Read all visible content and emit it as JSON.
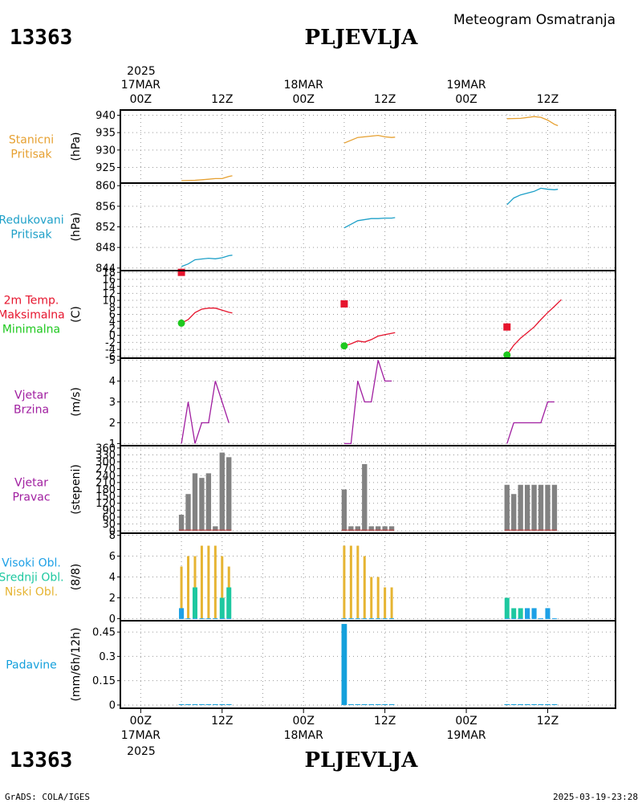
{
  "header": {
    "station_id": "13363",
    "station_name": "PLJEVLJA",
    "chart_title": "Meteogram Osmatranja"
  },
  "footer": {
    "station_id": "13363",
    "station_name": "PLJEVLJA",
    "credit": "GrADS: COLA/IGES",
    "timestamp": "2025-03-19-23:28"
  },
  "colors": {
    "pressure": "#e6a030",
    "reduced_pressure": "#1ea0c8",
    "tmax": "#e6142d",
    "tmin": "#1ec81e",
    "wind": "#a01ea0",
    "wind_dir_bar": "#828282",
    "cloud_low": "#e6b432",
    "cloud_mid": "#1ec8a0",
    "cloud_high": "#1ea0e6",
    "precip": "#14a0dc"
  },
  "time_axis": {
    "top_year": "2025",
    "bottom_year": "2025",
    "days": [
      {
        "label": "17MAR",
        "hour": 0
      },
      {
        "label": "18MAR",
        "hour": 24
      },
      {
        "label": "19MAR",
        "hour": 48
      }
    ],
    "ticks": [
      {
        "hour": 0,
        "label": "00Z"
      },
      {
        "hour": 12,
        "label": "12Z"
      },
      {
        "hour": 24,
        "label": "00Z"
      },
      {
        "hour": 36,
        "label": "12Z"
      },
      {
        "hour": 48,
        "label": "00Z"
      },
      {
        "hour": 60,
        "label": "12Z"
      }
    ],
    "range_hours": [
      -3,
      70
    ]
  },
  "chart_data": [
    {
      "type": "line",
      "label_lines": [
        "Stanicni",
        "Pritisak"
      ],
      "ylabel": "(hPa)",
      "ylim": [
        920.5,
        941.5
      ],
      "yticks": [
        925,
        930,
        935,
        940
      ],
      "series": [
        {
          "segments": [
            [
              [
                6,
                921.2
              ],
              [
                8,
                921.3
              ],
              [
                10,
                921.6
              ],
              [
                11,
                921.8
              ],
              [
                12,
                921.8
              ],
              [
                13,
                922.4
              ],
              [
                13.5,
                922.6
              ]
            ],
            [
              [
                30,
                932.0
              ],
              [
                31,
                932.8
              ],
              [
                32,
                933.6
              ],
              [
                34,
                934.0
              ],
              [
                35,
                934.2
              ],
              [
                36,
                933.8
              ],
              [
                37,
                933.6
              ],
              [
                37.5,
                933.7
              ]
            ],
            [
              [
                54,
                939.0
              ],
              [
                56,
                939.1
              ],
              [
                58,
                939.6
              ],
              [
                59,
                939.4
              ],
              [
                60,
                938.6
              ],
              [
                61,
                937.4
              ],
              [
                61.5,
                937.0
              ]
            ]
          ]
        }
      ]
    },
    {
      "type": "line",
      "label_lines": [
        "Redukovani",
        "Pritisak"
      ],
      "ylabel": "(hPa)",
      "ylim": [
        843.5,
        860.5
      ],
      "yticks": [
        844,
        848,
        852,
        856,
        860
      ],
      "series": [
        {
          "segments": [
            [
              [
                6,
                844.3
              ],
              [
                7,
                844.8
              ],
              [
                8,
                845.6
              ],
              [
                10,
                845.9
              ],
              [
                11,
                845.8
              ],
              [
                12,
                846.0
              ],
              [
                13,
                846.4
              ],
              [
                13.5,
                846.5
              ]
            ],
            [
              [
                30,
                851.8
              ],
              [
                31,
                852.5
              ],
              [
                32,
                853.2
              ],
              [
                34,
                853.6
              ],
              [
                35,
                853.6
              ],
              [
                36,
                853.7
              ],
              [
                37,
                853.7
              ],
              [
                37.5,
                853.8
              ]
            ],
            [
              [
                54,
                856.3
              ],
              [
                55,
                857.6
              ],
              [
                56,
                858.2
              ],
              [
                58,
                858.9
              ],
              [
                59,
                859.5
              ],
              [
                60,
                859.3
              ],
              [
                61,
                859.2
              ],
              [
                61.5,
                859.3
              ]
            ]
          ]
        }
      ]
    },
    {
      "type": "line",
      "label_lines": [
        "2m Temp.",
        "Maksimalna",
        "Minimalna"
      ],
      "label_colors": [
        "tmax",
        "tmax",
        "tmin"
      ],
      "ylabel": "(C)",
      "ylim": [
        -6.5,
        18.5
      ],
      "yticks": [
        -6,
        -4,
        -2,
        0,
        2,
        4,
        6,
        8,
        10,
        12,
        14,
        16,
        18
      ],
      "series": [
        {
          "segments": [
            [
              [
                6,
                3.5
              ],
              [
                7,
                4.5
              ],
              [
                8,
                6.5
              ],
              [
                9,
                7.5
              ],
              [
                10,
                7.8
              ],
              [
                11,
                7.8
              ],
              [
                12,
                7.2
              ],
              [
                13,
                6.6
              ],
              [
                13.5,
                6.4
              ]
            ],
            [
              [
                30,
                -3.0
              ],
              [
                31,
                -2.4
              ],
              [
                32,
                -1.6
              ],
              [
                33,
                -1.9
              ],
              [
                34,
                -1.2
              ],
              [
                35,
                -0.2
              ],
              [
                36,
                0.2
              ],
              [
                37.5,
                0.8
              ]
            ],
            [
              [
                54,
                -5.6
              ],
              [
                55,
                -2.8
              ],
              [
                56,
                -0.8
              ],
              [
                57,
                0.8
              ],
              [
                58,
                2.4
              ],
              [
                59,
                4.5
              ],
              [
                60,
                6.5
              ],
              [
                61,
                8.3
              ],
              [
                62,
                10.2
              ]
            ]
          ]
        }
      ],
      "tmax_points": [
        [
          6,
          18.0
        ],
        [
          30,
          9.0
        ],
        [
          54,
          2.4
        ]
      ],
      "tmin_points": [
        [
          6,
          3.5
        ],
        [
          30,
          -3.0
        ],
        [
          54,
          -5.6
        ]
      ]
    },
    {
      "type": "line",
      "label_lines": [
        "Vjetar",
        "Brzina"
      ],
      "ylabel": "(m/s)",
      "ylim": [
        0.9,
        5.1
      ],
      "yticks": [
        1,
        2,
        3,
        4,
        5
      ],
      "series": [
        {
          "segments": [
            [
              [
                6,
                1
              ],
              [
                7,
                3
              ],
              [
                8,
                1
              ],
              [
                9,
                2
              ],
              [
                10,
                2
              ],
              [
                11,
                4
              ],
              [
                12,
                3
              ],
              [
                13,
                2
              ]
            ],
            [
              [
                30,
                1
              ],
              [
                31,
                1
              ],
              [
                32,
                4
              ],
              [
                33,
                3
              ],
              [
                34,
                3
              ],
              [
                35,
                5
              ],
              [
                36,
                4
              ],
              [
                37,
                4
              ]
            ],
            [
              [
                54,
                1
              ],
              [
                55,
                2
              ],
              [
                56,
                2
              ],
              [
                57,
                2
              ],
              [
                58,
                2
              ],
              [
                59,
                2
              ],
              [
                60,
                3
              ],
              [
                61,
                3
              ]
            ]
          ]
        }
      ]
    },
    {
      "type": "bar",
      "label_lines": [
        "Vjetar",
        "Pravac"
      ],
      "ylabel": "(stepeni)",
      "ylim": [
        -10,
        370
      ],
      "yticks": [
        0,
        30,
        60,
        90,
        120,
        150,
        180,
        210,
        240,
        270,
        300,
        330,
        360
      ],
      "x": [
        6,
        7,
        8,
        9,
        10,
        11,
        12,
        13,
        30,
        31,
        32,
        33,
        34,
        35,
        36,
        37,
        54,
        55,
        56,
        57,
        58,
        59,
        60,
        61
      ],
      "values": [
        70,
        160,
        250,
        230,
        250,
        20,
        340,
        320,
        180,
        20,
        20,
        290,
        20,
        20,
        20,
        20,
        200,
        160,
        200,
        200,
        200,
        200,
        200,
        200
      ]
    },
    {
      "type": "bar",
      "label_lines": [
        "Visoki Obl.",
        "Srednji Obl.",
        "Niski Obl."
      ],
      "label_colors": [
        "cloud_high",
        "cloud_mid",
        "cloud_low"
      ],
      "ylabel": "(8/8)",
      "ylim": [
        -0.2,
        8.2
      ],
      "yticks": [
        0,
        2,
        4,
        6,
        8
      ],
      "x": [
        6,
        7,
        8,
        9,
        10,
        11,
        12,
        13,
        30,
        31,
        32,
        33,
        34,
        35,
        36,
        37,
        54,
        55,
        56,
        57,
        58,
        59,
        60,
        61
      ],
      "series": [
        {
          "name": "Niski Obl.",
          "values": [
            5,
            6,
            6,
            7,
            7,
            7,
            6,
            5,
            7,
            7,
            7,
            6,
            4,
            4,
            3,
            3,
            0,
            0,
            0,
            0,
            0,
            0,
            0,
            0
          ]
        },
        {
          "name": "Srednji Obl.",
          "values": [
            1,
            0,
            3,
            0,
            0,
            0,
            2,
            3,
            0,
            0,
            0,
            0,
            0,
            0,
            0,
            0,
            2,
            1,
            1,
            1,
            1,
            0,
            1,
            0
          ]
        },
        {
          "name": "Visoki Obl.",
          "values": [
            1,
            0,
            0,
            0,
            0,
            0,
            0,
            0,
            0,
            0,
            0,
            0,
            0,
            0,
            0,
            0,
            0,
            0,
            0,
            1,
            1,
            0,
            1,
            0
          ]
        }
      ]
    },
    {
      "type": "bar",
      "label_lines": [
        "Padavine"
      ],
      "ylabel": "(mm/6h/12h)",
      "ylim": [
        -0.02,
        0.52
      ],
      "yticks": [
        0,
        0.15,
        0.3,
        0.45
      ],
      "ytick_labels": [
        "0",
        "0.15",
        "0.3",
        "0.45"
      ],
      "x": [
        6,
        7,
        8,
        9,
        10,
        11,
        12,
        13,
        30,
        31,
        32,
        33,
        34,
        35,
        36,
        37,
        54,
        55,
        56,
        57,
        58,
        59,
        60,
        61
      ],
      "values": [
        0.005,
        0.005,
        0.005,
        0.005,
        0.005,
        0.005,
        0.005,
        0.005,
        0.5,
        0.005,
        0.005,
        0.005,
        0.005,
        0.005,
        0.005,
        0.005,
        0.005,
        0.005,
        0.005,
        0.005,
        0.005,
        0.005,
        0.005,
        0.005
      ]
    }
  ]
}
